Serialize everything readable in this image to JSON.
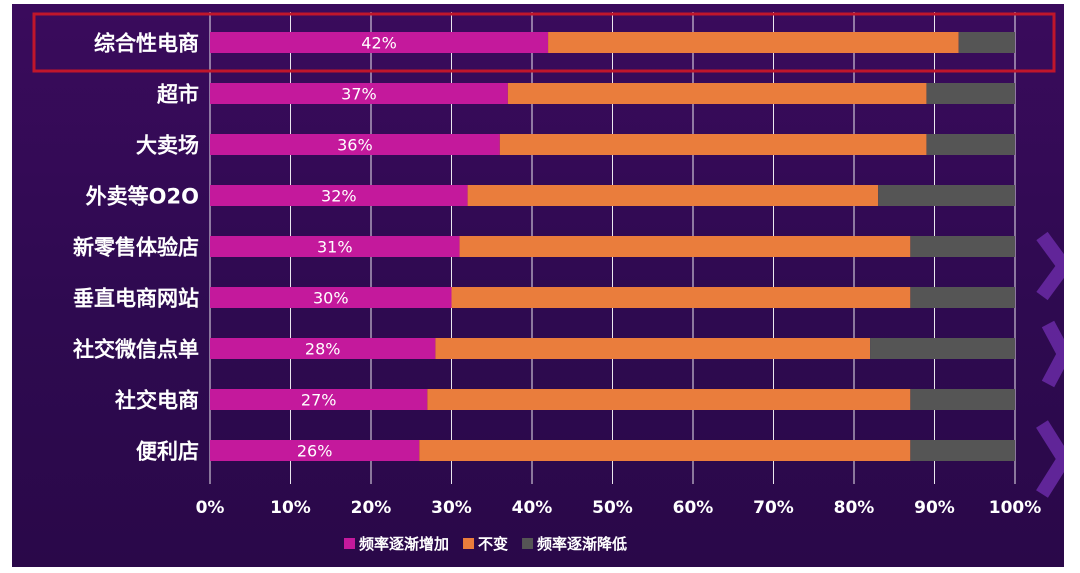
{
  "chart_data": {
    "type": "bar",
    "orientation": "horizontal",
    "stacked": true,
    "categories": [
      "综合性电商",
      "超市",
      "大卖场",
      "外卖等O2O",
      "新零售体验店",
      "垂直电商网站",
      "社交微信点单",
      "社交电商",
      "便利店"
    ],
    "series": [
      {
        "name": "频率逐渐增加",
        "color": "#c4199c",
        "values": [
          42,
          37,
          36,
          32,
          31,
          30,
          28,
          27,
          26
        ]
      },
      {
        "name": "不变",
        "color": "#ea7d3c",
        "values": [
          51,
          52,
          53,
          51,
          56,
          57,
          54,
          60,
          61
        ]
      },
      {
        "name": "频率逐渐降低",
        "color": "#555555",
        "values": [
          7,
          11,
          11,
          17,
          13,
          13,
          18,
          13,
          13
        ]
      }
    ],
    "data_labels": [
      "42%",
      "37%",
      "36%",
      "32%",
      "31%",
      "30%",
      "28%",
      "27%",
      "26%"
    ],
    "xlim": [
      0,
      100
    ],
    "xticks": [
      "0%",
      "10%",
      "20%",
      "30%",
      "40%",
      "50%",
      "60%",
      "70%",
      "80%",
      "90%",
      "100%"
    ],
    "grid": true,
    "legend_position": "bottom",
    "highlighted_category": "综合性电商",
    "highlight_color": "#c0162b",
    "title": "",
    "xlabel": "",
    "ylabel": ""
  }
}
